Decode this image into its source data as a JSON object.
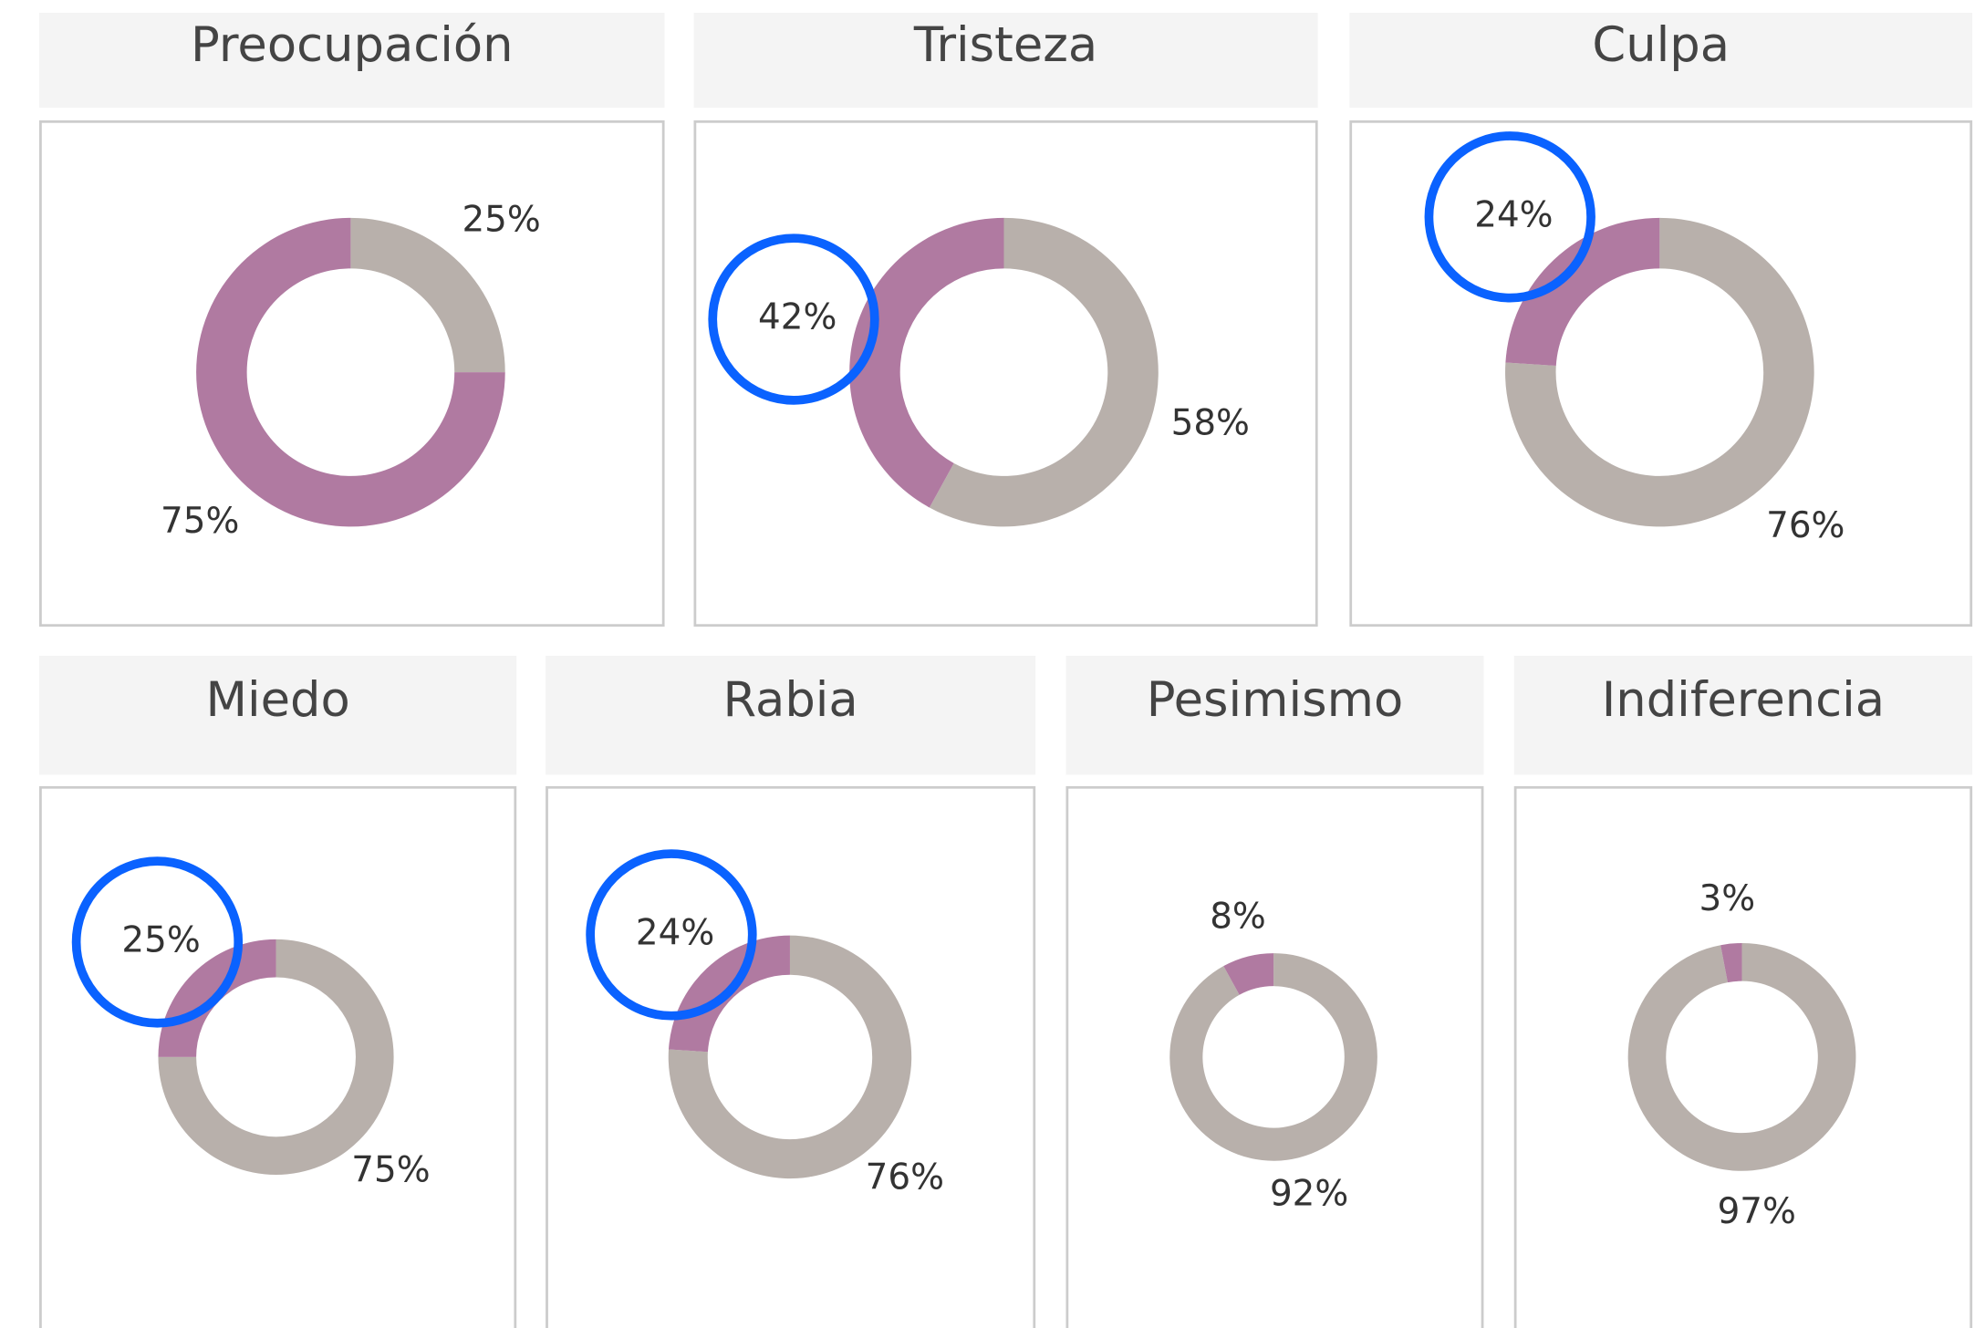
{
  "chart_data": [
    {
      "type": "donut",
      "title": "Preocupación",
      "values": [
        25,
        75
      ],
      "value_labels": [
        "25%",
        "75%"
      ],
      "colors": [
        "#b8b0ab",
        "#b07aa1"
      ],
      "highlight": false
    },
    {
      "type": "donut",
      "title": "Tristeza",
      "values": [
        58,
        42
      ],
      "value_labels": [
        "58%",
        "42%"
      ],
      "colors": [
        "#b8b0ab",
        "#b07aa1"
      ],
      "highlight": true
    },
    {
      "type": "donut",
      "title": "Culpa",
      "values": [
        76,
        24
      ],
      "value_labels": [
        "76%",
        "24%"
      ],
      "colors": [
        "#b8b0ab",
        "#b07aa1"
      ],
      "highlight": true
    },
    {
      "type": "donut",
      "title": "Miedo",
      "values": [
        75,
        25
      ],
      "value_labels": [
        "75%",
        "25%"
      ],
      "colors": [
        "#b8b0ab",
        "#b07aa1"
      ],
      "highlight": true
    },
    {
      "type": "donut",
      "title": "Rabia",
      "values": [
        76,
        24
      ],
      "value_labels": [
        "76%",
        "24%"
      ],
      "colors": [
        "#b8b0ab",
        "#b07aa1"
      ],
      "highlight": true
    },
    {
      "type": "donut",
      "title": "Pesimismo",
      "values": [
        92,
        8
      ],
      "value_labels": [
        "92%",
        "8%"
      ],
      "colors": [
        "#b8b0ab",
        "#b07aa1"
      ],
      "highlight": false
    },
    {
      "type": "donut",
      "title": "Indiferencia",
      "values": [
        97,
        3
      ],
      "value_labels": [
        "97%",
        "3%"
      ],
      "colors": [
        "#b8b0ab",
        "#b07aa1"
      ],
      "highlight": false
    }
  ]
}
